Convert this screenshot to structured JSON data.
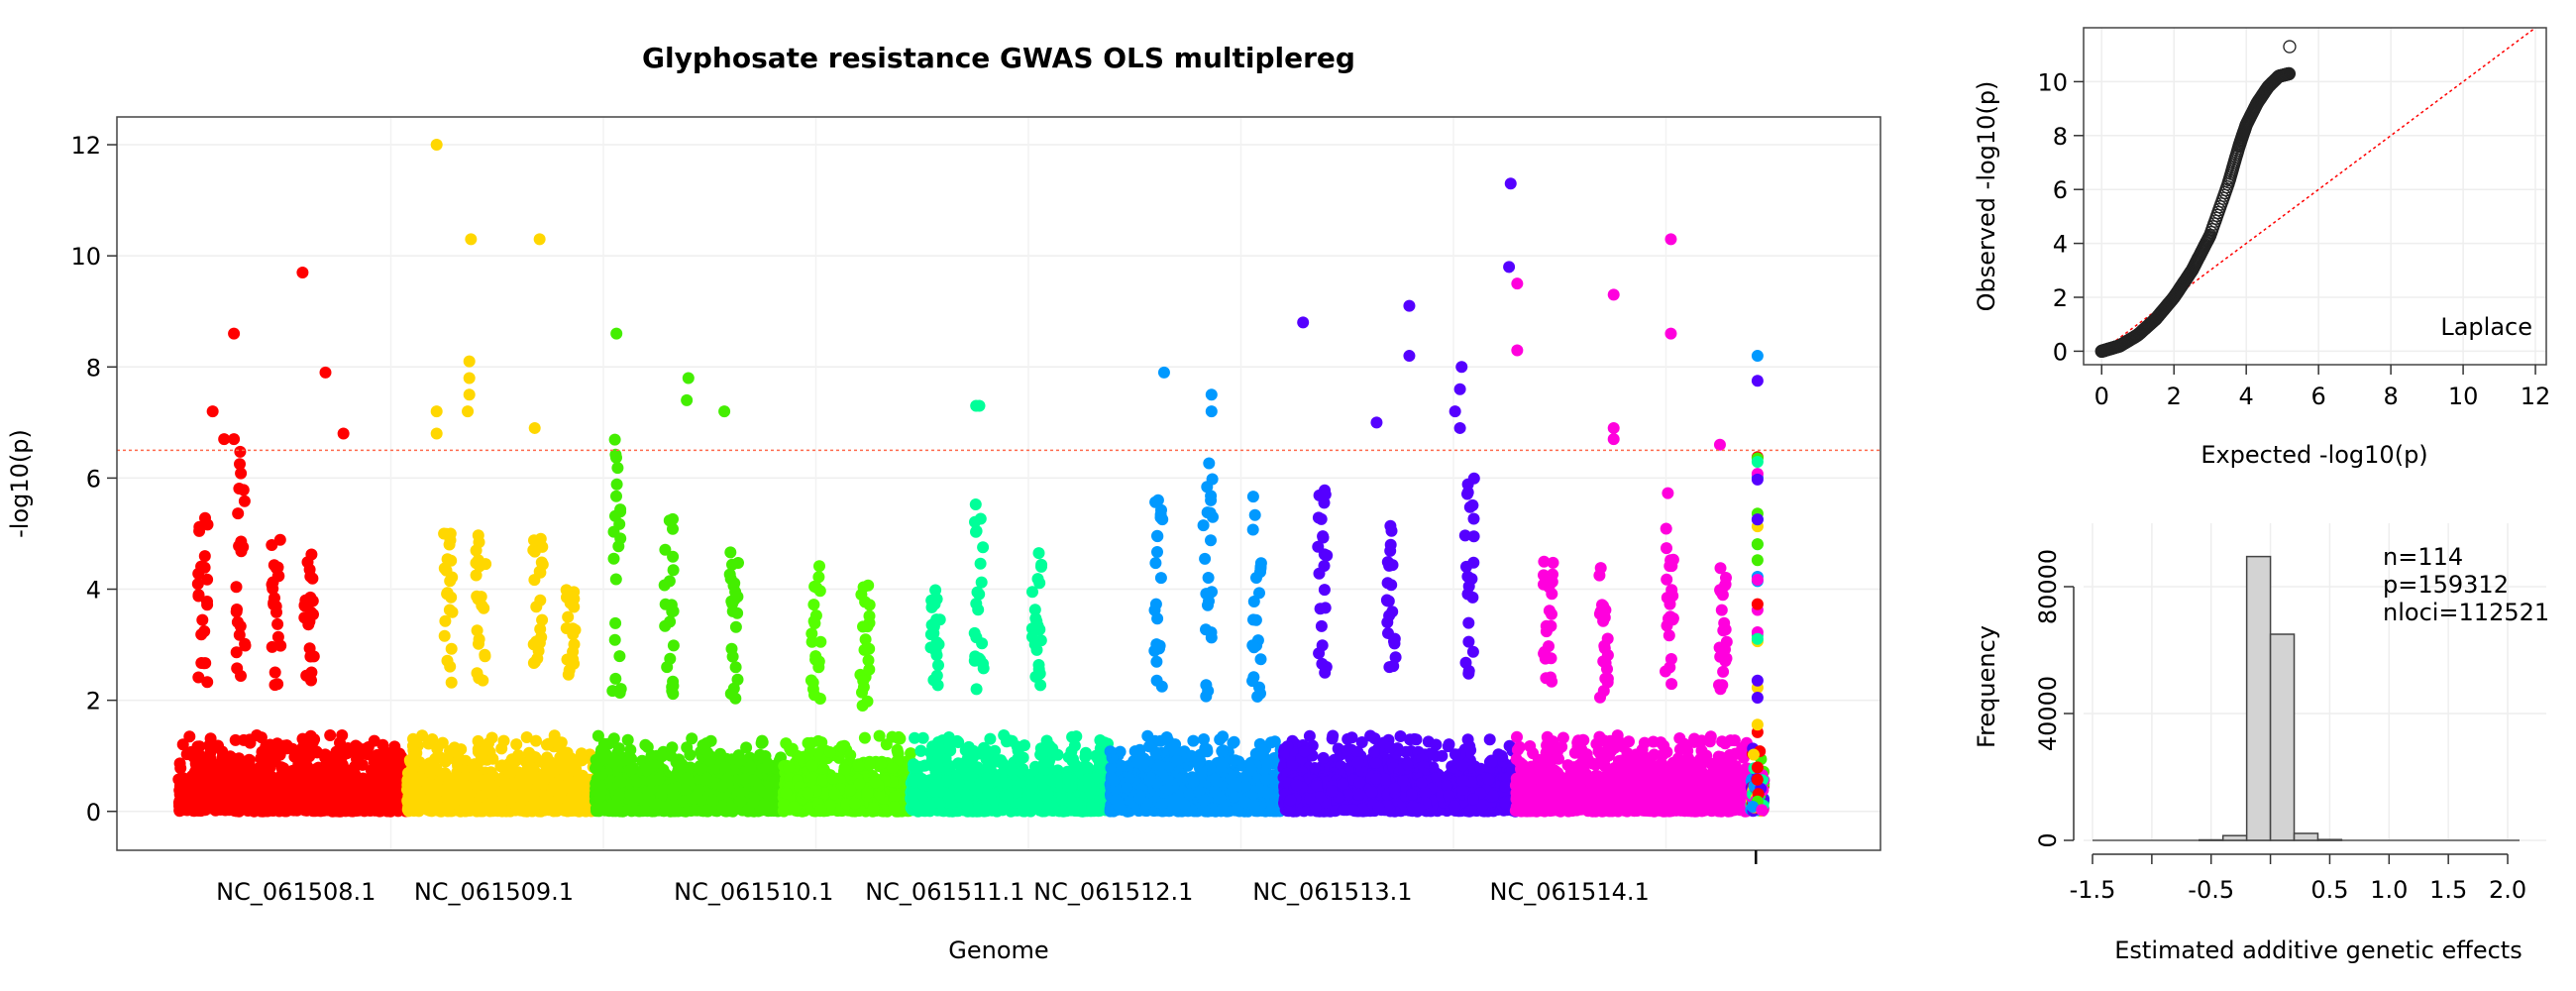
{
  "chart_data": [
    {
      "type": "scatter",
      "subtype": "manhattan",
      "title": "Glyphosate resistance GWAS OLS multiplereg",
      "xlabel": "Genome",
      "ylabel": "-log10(p)",
      "ylim": [
        -0.7,
        12.5
      ],
      "yticks": [
        0,
        2,
        4,
        6,
        8,
        10,
        12
      ],
      "threshold": 6.5,
      "threshold_color": "#FF6A4D",
      "grid": true,
      "genome_extent": [
        0,
        1000
      ],
      "chromosomes": [
        {
          "label": "NC_061508.1",
          "start": 0,
          "end": 140,
          "tick": 72,
          "color": "#FF0000",
          "base": 2.2,
          "peaks": [
            [
              15,
              5.7
            ],
            [
              38,
              6.7
            ],
            [
              60,
              4.9
            ],
            [
              80,
              5.0
            ]
          ]
        },
        {
          "label": "NC_061509.1",
          "start": 140,
          "end": 255,
          "tick": 193,
          "color": "#FFD700",
          "base": 2.3,
          "peaks": [
            [
              165,
              5.5
            ],
            [
              185,
              5.0
            ],
            [
              220,
              5.0
            ],
            [
              240,
              4.0
            ]
          ]
        },
        {
          "label": "",
          "start": 255,
          "end": 370,
          "tick": null,
          "color": "#44EE00",
          "base": 2.0,
          "peaks": [
            [
              268,
              6.8
            ],
            [
              300,
              5.3
            ],
            [
              340,
              4.8
            ]
          ]
        },
        {
          "label": "NC_061510.1",
          "start": 370,
          "end": 448,
          "tick": 352,
          "color": "#55FF00",
          "base": 1.9,
          "peaks": [
            [
              390,
              4.5
            ],
            [
              420,
              4.1
            ]
          ]
        },
        {
          "label": "NC_061511.1",
          "start": 448,
          "end": 570,
          "tick": 469,
          "color": "#00FF99",
          "base": 2.2,
          "peaks": [
            [
              463,
              4.0
            ],
            [
              490,
              5.6
            ],
            [
              525,
              4.7
            ]
          ]
        },
        {
          "label": "NC_061512.1",
          "start": 570,
          "end": 676,
          "tick": 572,
          "color": "#0099FF",
          "base": 2.0,
          "peaks": [
            [
              600,
              6.0
            ],
            [
              630,
              6.4
            ],
            [
              660,
              5.8
            ]
          ]
        },
        {
          "label": "NC_061513.1",
          "start": 676,
          "end": 818,
          "tick": 706,
          "color": "#5500FF",
          "base": 2.4,
          "peaks": [
            [
              700,
              5.8
            ],
            [
              742,
              5.5
            ],
            [
              790,
              6.0
            ]
          ]
        },
        {
          "label": "NC_061514.1",
          "start": 818,
          "end": 960,
          "tick": 851,
          "color": "#FF00DD",
          "base": 2.0,
          "peaks": [
            [
              838,
              4.5
            ],
            [
              872,
              4.5
            ],
            [
              912,
              5.9
            ],
            [
              945,
              4.4
            ]
          ]
        },
        {
          "label": "",
          "start": 962,
          "end": 970,
          "tick": 965,
          "color": "multi",
          "base": 3.0,
          "peaks": []
        }
      ],
      "multi_colors": [
        "#FF0000",
        "#FFD700",
        "#44EE00",
        "#00FF99",
        "#0099FF",
        "#5500FF",
        "#FF00DD"
      ],
      "significant_points": [
        {
          "x": 34,
          "y": 8.6
        },
        {
          "x": 21,
          "y": 7.2
        },
        {
          "x": 28,
          "y": 6.7
        },
        {
          "x": 34,
          "y": 6.7
        },
        {
          "x": 76,
          "y": 9.7
        },
        {
          "x": 90,
          "y": 7.9
        },
        {
          "x": 101,
          "y": 6.8
        },
        {
          "x": 158,
          "y": 12.0
        },
        {
          "x": 179,
          "y": 10.3
        },
        {
          "x": 221,
          "y": 10.3
        },
        {
          "x": 178,
          "y": 8.1
        },
        {
          "x": 178,
          "y": 7.8
        },
        {
          "x": 178,
          "y": 7.5
        },
        {
          "x": 177,
          "y": 7.2
        },
        {
          "x": 158,
          "y": 7.2
        },
        {
          "x": 158,
          "y": 6.8
        },
        {
          "x": 218,
          "y": 6.9
        },
        {
          "x": 268,
          "y": 8.6
        },
        {
          "x": 312,
          "y": 7.8
        },
        {
          "x": 311,
          "y": 7.4
        },
        {
          "x": 334,
          "y": 7.2
        },
        {
          "x": 488,
          "y": 7.3
        },
        {
          "x": 490,
          "y": 7.3
        },
        {
          "x": 603,
          "y": 7.9
        },
        {
          "x": 632,
          "y": 7.5
        },
        {
          "x": 632,
          "y": 7.2
        },
        {
          "x": 688,
          "y": 8.8
        },
        {
          "x": 753,
          "y": 9.1
        },
        {
          "x": 753,
          "y": 8.2
        },
        {
          "x": 733,
          "y": 7.0
        },
        {
          "x": 785,
          "y": 8.0
        },
        {
          "x": 784,
          "y": 7.6
        },
        {
          "x": 781,
          "y": 7.2
        },
        {
          "x": 784,
          "y": 6.9
        },
        {
          "x": 815,
          "y": 11.3
        },
        {
          "x": 814,
          "y": 9.8
        },
        {
          "x": 819,
          "y": 9.5
        },
        {
          "x": 819,
          "y": 8.3
        },
        {
          "x": 878,
          "y": 9.3
        },
        {
          "x": 878,
          "y": 6.9
        },
        {
          "x": 878,
          "y": 6.7
        },
        {
          "x": 913,
          "y": 10.3
        },
        {
          "x": 913,
          "y": 8.6
        },
        {
          "x": 943,
          "y": 6.6
        }
      ]
    },
    {
      "type": "scatter",
      "subtype": "qq",
      "xlabel": "Expected -log10(p)",
      "ylabel": "Observed -log10(p)",
      "xlim": [
        -0.5,
        12.3
      ],
      "ylim": [
        -0.5,
        12.0
      ],
      "xticks": [
        0,
        2,
        4,
        6,
        8,
        10,
        12
      ],
      "yticks": [
        0,
        2,
        4,
        6,
        8,
        10
      ],
      "legend": "Laplace",
      "reference_line": {
        "slope": 1,
        "color": "#FF0000"
      },
      "curve": [
        [
          0,
          0
        ],
        [
          0.5,
          0.2
        ],
        [
          1.0,
          0.6
        ],
        [
          1.5,
          1.2
        ],
        [
          2.0,
          2.0
        ],
        [
          2.5,
          3.0
        ],
        [
          3.0,
          4.3
        ],
        [
          3.5,
          6.2
        ],
        [
          3.8,
          7.6
        ],
        [
          4.0,
          8.4
        ],
        [
          4.3,
          9.2
        ],
        [
          4.6,
          9.8
        ],
        [
          4.9,
          10.2
        ],
        [
          5.2,
          10.3
        ]
      ],
      "top_point": [
        5.2,
        11.3
      ],
      "grid": true
    },
    {
      "type": "histogram",
      "xlabel": "Estimated additive genetic effects",
      "ylabel": "Frequency",
      "xlim": [
        -1.5,
        2.1
      ],
      "ylim": [
        0,
        100000
      ],
      "xticks": [
        -1.5,
        -1.0,
        -0.5,
        0.0,
        0.5,
        1.0,
        1.5,
        2.0
      ],
      "xtick_labels": [
        "-1.5",
        "",
        "-0.5",
        "",
        "0.5",
        "1.0",
        "1.5",
        "2.0"
      ],
      "yticks": [
        0,
        40000,
        80000
      ],
      "ytick_labels": [
        "0",
        "40000",
        "80000"
      ],
      "bins": [
        {
          "x0": -0.6,
          "x1": -0.4,
          "count": 150
        },
        {
          "x0": -0.4,
          "x1": -0.2,
          "count": 1500
        },
        {
          "x0": -0.2,
          "x1": 0.0,
          "count": 89500
        },
        {
          "x0": 0.0,
          "x1": 0.2,
          "count": 65000
        },
        {
          "x0": 0.2,
          "x1": 0.4,
          "count": 2200
        },
        {
          "x0": 0.4,
          "x1": 0.6,
          "count": 250
        }
      ],
      "bar_fill": "#D3D3D3",
      "annotations": [
        "n=114",
        "p=159312",
        "nloci=112521"
      ],
      "grid": true
    }
  ]
}
